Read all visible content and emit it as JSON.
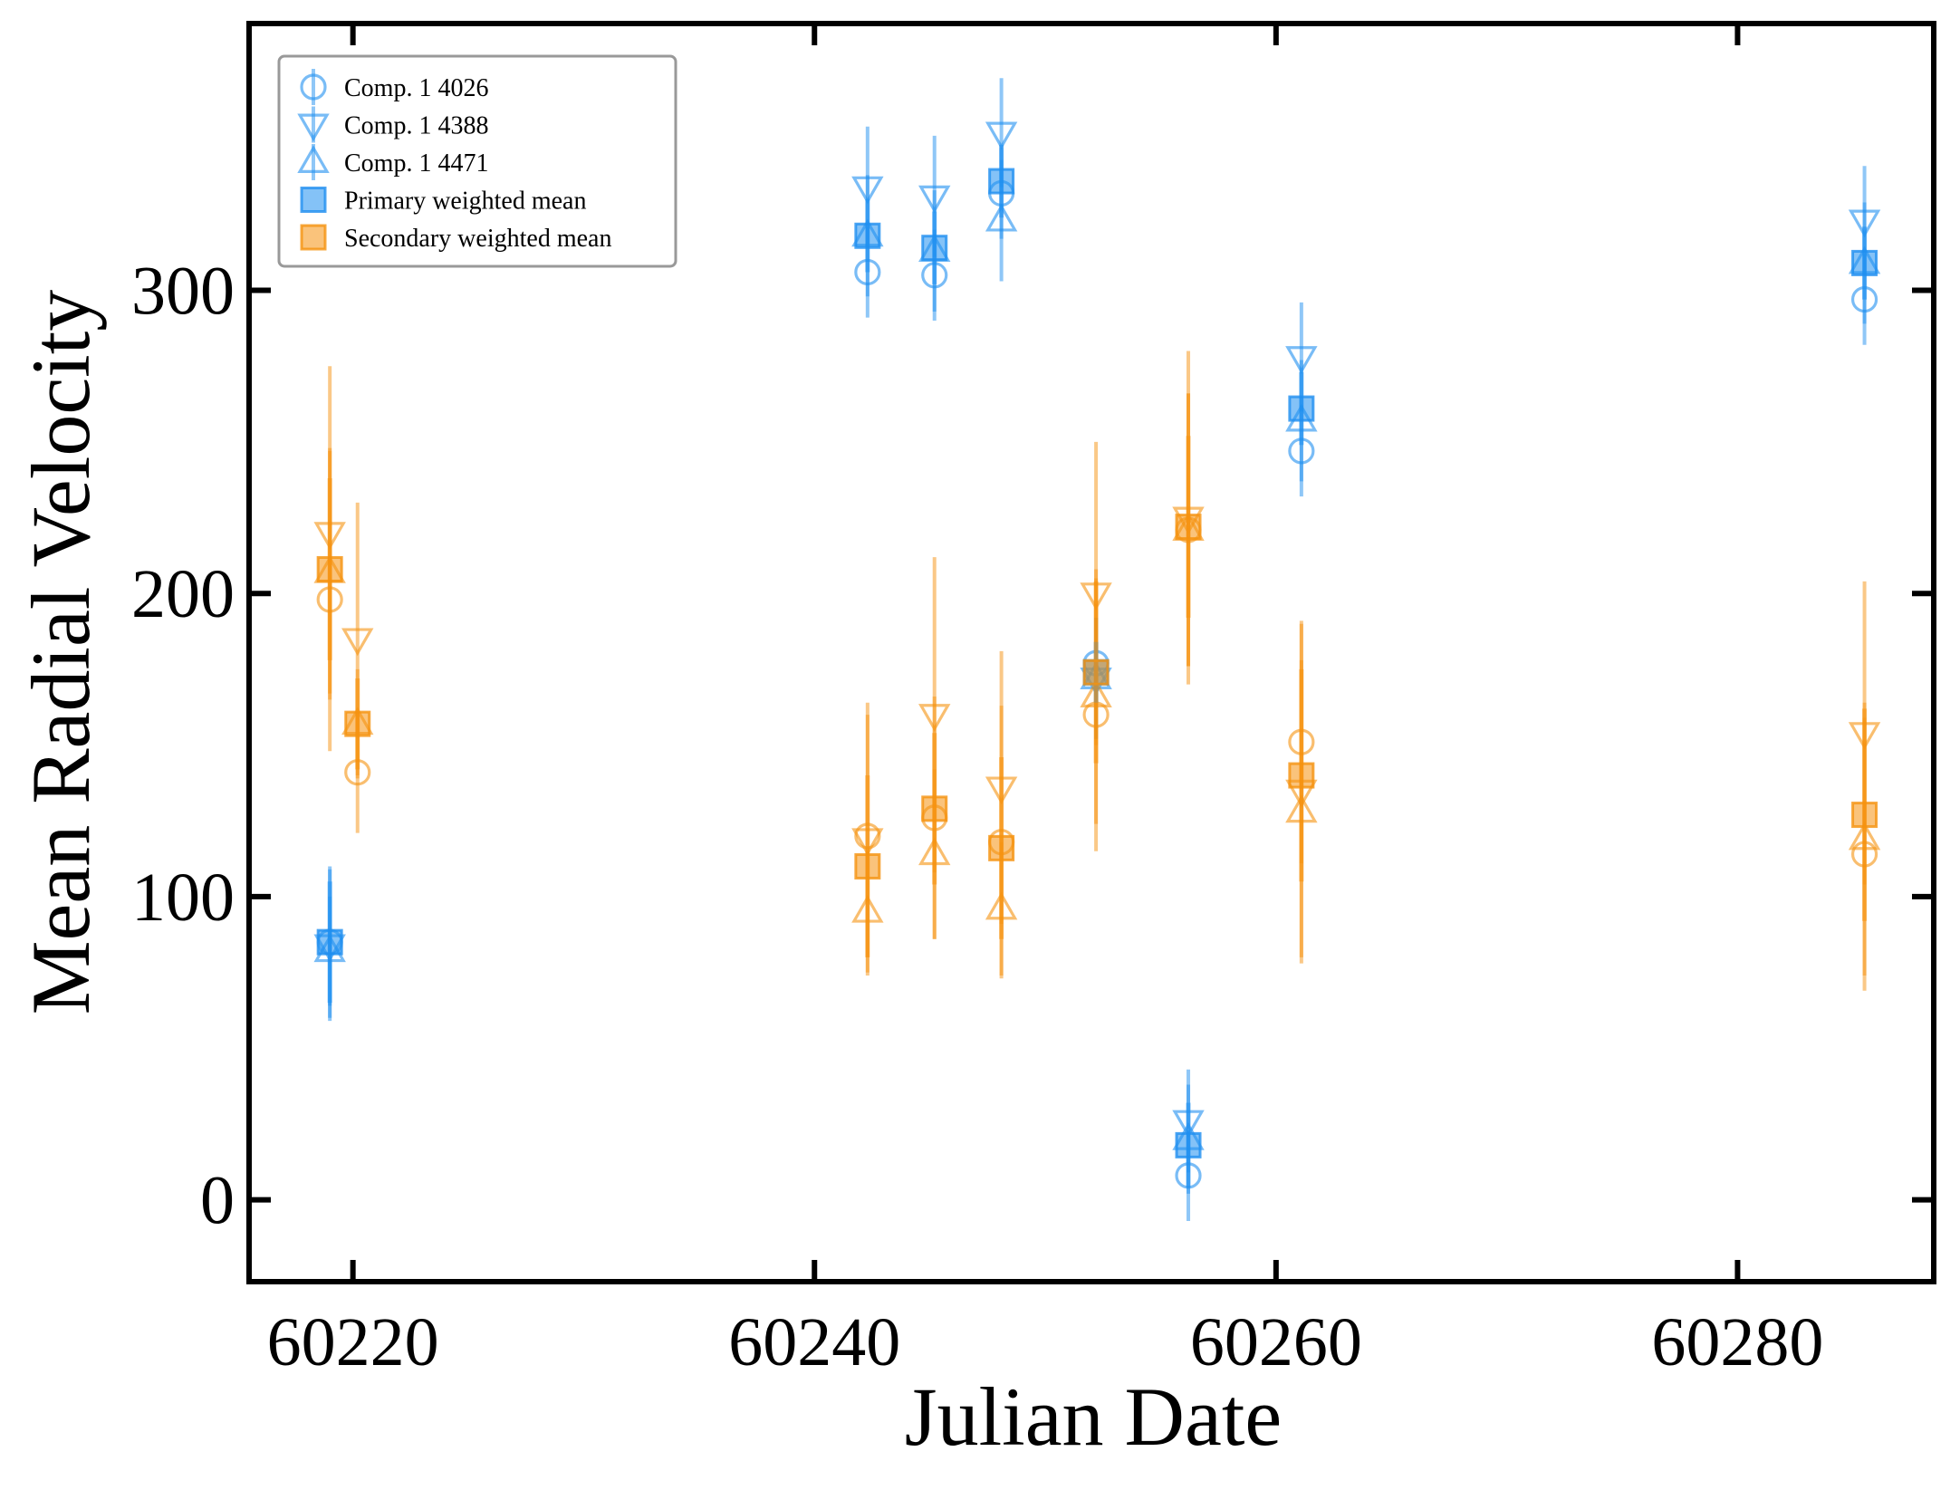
{
  "chart_data": {
    "type": "scatter",
    "title": "",
    "xlabel": "Julian Date",
    "ylabel": "Mean Radial Velocity",
    "xlim": [
      60215.5,
      60288.5
    ],
    "ylim": [
      -27,
      388
    ],
    "x_ticks": [
      60220,
      60240,
      60260,
      60280
    ],
    "y_ticks": [
      0,
      100,
      200,
      300
    ],
    "x_tick_labels": [
      "60220",
      "60240",
      "60260",
      "60280"
    ],
    "y_tick_labels": [
      "0",
      "100",
      "200",
      "300"
    ],
    "grid": false,
    "legend_position": "top-left",
    "colors": {
      "primary": "#1f8ff0",
      "secondary": "#f5920f"
    },
    "legend": [
      {
        "label": "Comp. 1 4026",
        "marker": "circle",
        "color": "primary"
      },
      {
        "label": "Comp. 1 4388",
        "marker": "triangle-down",
        "color": "primary"
      },
      {
        "label": "Comp. 1 4471",
        "marker": "triangle-up",
        "color": "primary"
      },
      {
        "label": "Primary weighted mean",
        "marker": "square",
        "color": "primary"
      },
      {
        "label": "Secondary weighted mean",
        "marker": "square",
        "color": "secondary"
      }
    ],
    "series": [
      {
        "component": "primary",
        "line": "4026",
        "marker": "circle",
        "points": [
          {
            "x": 60219.0,
            "y": 85,
            "err": 25
          },
          {
            "x": 60242.3,
            "y": 306,
            "err": 15
          },
          {
            "x": 60245.2,
            "y": 305,
            "err": 15
          },
          {
            "x": 60248.1,
            "y": 332,
            "err": 15
          },
          {
            "x": 60252.2,
            "y": 177,
            "err": 15
          },
          {
            "x": 60256.2,
            "y": 8,
            "err": 15
          },
          {
            "x": 60261.1,
            "y": 247,
            "err": 15
          },
          {
            "x": 60285.5,
            "y": 297,
            "err": 15
          }
        ]
      },
      {
        "component": "primary",
        "line": "4388",
        "marker": "triangle-down",
        "points": [
          {
            "x": 60219.0,
            "y": 84,
            "err": 25
          },
          {
            "x": 60242.3,
            "y": 334,
            "err": 20
          },
          {
            "x": 60245.2,
            "y": 331,
            "err": 20
          },
          {
            "x": 60248.1,
            "y": 352,
            "err": 18
          },
          {
            "x": 60252.2,
            "y": 172,
            "err": 20
          },
          {
            "x": 60256.2,
            "y": 26,
            "err": 17
          },
          {
            "x": 60261.1,
            "y": 278,
            "err": 18
          },
          {
            "x": 60285.5,
            "y": 323,
            "err": 18
          }
        ]
      },
      {
        "component": "primary",
        "line": "4471",
        "marker": "triangle-up",
        "points": [
          {
            "x": 60219.0,
            "y": 82,
            "err": 18
          },
          {
            "x": 60242.3,
            "y": 318,
            "err": 20
          },
          {
            "x": 60245.2,
            "y": 313,
            "err": 20
          },
          {
            "x": 60248.1,
            "y": 323,
            "err": 20
          },
          {
            "x": 60252.2,
            "y": 172,
            "err": 20
          },
          {
            "x": 60256.2,
            "y": 20,
            "err": 18
          },
          {
            "x": 60261.1,
            "y": 257,
            "err": 20
          },
          {
            "x": 60285.5,
            "y": 309,
            "err": 20
          }
        ]
      },
      {
        "component": "secondary",
        "line": "4026",
        "marker": "circle",
        "points": [
          {
            "x": 60219.0,
            "y": 198,
            "err": 50
          },
          {
            "x": 60220.2,
            "y": 141,
            "err": 20
          },
          {
            "x": 60242.3,
            "y": 120,
            "err": 40
          },
          {
            "x": 60245.2,
            "y": 126,
            "err": 40
          },
          {
            "x": 60248.1,
            "y": 118,
            "err": 45
          },
          {
            "x": 60252.2,
            "y": 160,
            "err": 45
          },
          {
            "x": 60256.2,
            "y": 221,
            "err": 45
          },
          {
            "x": 60261.1,
            "y": 151,
            "err": 40
          },
          {
            "x": 60285.5,
            "y": 114,
            "err": 45
          }
        ]
      },
      {
        "component": "secondary",
        "line": "4388",
        "marker": "triangle-down",
        "points": [
          {
            "x": 60219.0,
            "y": 220,
            "err": 55
          },
          {
            "x": 60220.2,
            "y": 185,
            "err": 45
          },
          {
            "x": 60242.3,
            "y": 119,
            "err": 45
          },
          {
            "x": 60245.2,
            "y": 160,
            "err": 52
          },
          {
            "x": 60248.1,
            "y": 136,
            "err": 45
          },
          {
            "x": 60252.2,
            "y": 200,
            "err": 50
          },
          {
            "x": 60256.2,
            "y": 225,
            "err": 55
          },
          {
            "x": 60261.1,
            "y": 135,
            "err": 55
          },
          {
            "x": 60285.5,
            "y": 154,
            "err": 50
          }
        ]
      },
      {
        "component": "secondary",
        "line": "4471",
        "marker": "triangle-up",
        "points": [
          {
            "x": 60219.0,
            "y": 207,
            "err": 40
          },
          {
            "x": 60220.2,
            "y": 157,
            "err": 18
          },
          {
            "x": 60242.3,
            "y": 95,
            "err": 20
          },
          {
            "x": 60245.2,
            "y": 114,
            "err": 28
          },
          {
            "x": 60248.1,
            "y": 96,
            "err": 22
          },
          {
            "x": 60252.2,
            "y": 166,
            "err": 42
          },
          {
            "x": 60256.2,
            "y": 221,
            "err": 45
          },
          {
            "x": 60261.1,
            "y": 128,
            "err": 50
          },
          {
            "x": 60285.5,
            "y": 119,
            "err": 45
          }
        ]
      },
      {
        "component": "primary",
        "line": "weighted mean",
        "marker": "square",
        "points": [
          {
            "x": 60219.0,
            "y": 85,
            "err": 20
          },
          {
            "x": 60242.3,
            "y": 318,
            "err": 12
          },
          {
            "x": 60245.2,
            "y": 314,
            "err": 12
          },
          {
            "x": 60248.1,
            "y": 336,
            "err": 12
          },
          {
            "x": 60252.2,
            "y": 174,
            "err": 10
          },
          {
            "x": 60256.2,
            "y": 18,
            "err": 14
          },
          {
            "x": 60261.1,
            "y": 261,
            "err": 12
          },
          {
            "x": 60285.5,
            "y": 309,
            "err": 12
          }
        ]
      },
      {
        "component": "secondary",
        "line": "weighted mean",
        "marker": "square",
        "points": [
          {
            "x": 60219.0,
            "y": 208,
            "err": 30
          },
          {
            "x": 60220.2,
            "y": 157,
            "err": 15
          },
          {
            "x": 60242.3,
            "y": 110,
            "err": 30
          },
          {
            "x": 60245.2,
            "y": 129,
            "err": 25
          },
          {
            "x": 60248.1,
            "y": 116,
            "err": 30
          },
          {
            "x": 60252.2,
            "y": 174,
            "err": 30
          },
          {
            "x": 60256.2,
            "y": 222,
            "err": 30
          },
          {
            "x": 60261.1,
            "y": 140,
            "err": 35
          },
          {
            "x": 60285.5,
            "y": 127,
            "err": 35
          }
        ]
      }
    ]
  }
}
